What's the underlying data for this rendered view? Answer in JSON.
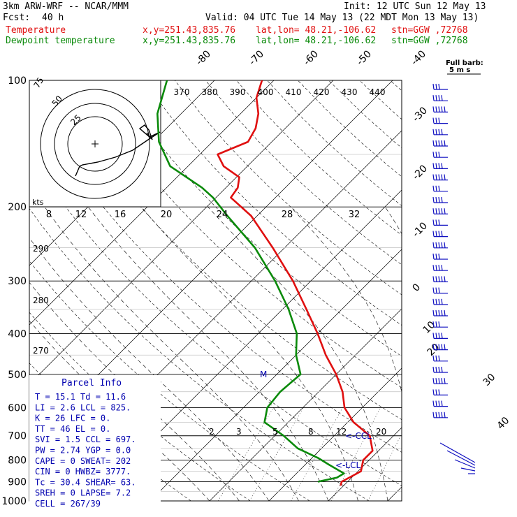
{
  "header": {
    "model": "3km ARW-WRF -- NCAR/MMM",
    "init": "Init: 12 UTC Sun 12 May 13",
    "fcst_label": "Fcst:",
    "fcst_value": "40 h",
    "valid": "Valid: 04 UTC Tue 14 May 13 (22 MDT Mon 13 May 13)",
    "temp_label": "Temperature",
    "dewp_label": "Dewpoint temperature",
    "xy": "x,y=251.43,835.76",
    "latlon": "lat,lon= 48.21,-106.62",
    "stn": "stn=GGW ,72768"
  },
  "colors": {
    "temperature": "#e01010",
    "dewpoint": "#0a8a0a",
    "parcel_text": "#0000b0",
    "wind": "#1010c0"
  },
  "chart_data": {
    "type": "line",
    "title": "",
    "y_axis": "pressure_hPa_log",
    "ylim": [
      1000,
      100
    ],
    "pressure_labels": [
      "100",
      "200",
      "300",
      "400",
      "500",
      "600",
      "700",
      "800",
      "900",
      "1000"
    ],
    "isotherm_labels": [
      "-80",
      "-70",
      "-60",
      "-50",
      "-40",
      "-30",
      "-20",
      "-10",
      "0",
      "10",
      "20",
      "30",
      "40"
    ],
    "theta_labels": [
      "370",
      "380",
      "390",
      "400",
      "410",
      "420",
      "430",
      "440"
    ],
    "theta_left_labels": [
      "290",
      "280",
      "270"
    ],
    "mixing_ratio_labels": [
      "2",
      "3",
      "5",
      "8",
      "12",
      "20"
    ],
    "hodograph_ring_labels": [
      "75",
      "50",
      "25"
    ],
    "hodograph_speed_labels": [
      "8",
      "12",
      "16",
      "20",
      "24",
      "28",
      "32"
    ],
    "hodograph_units": "kts",
    "barb_legend": [
      "Full barb:",
      "5 m s"
    ],
    "markers": {
      "ccl": "<-CCL",
      "lcl": "<-LCL",
      "m": "M"
    },
    "series": [
      {
        "name": "Temperature",
        "points": [
          [
            920,
            9.5
          ],
          [
            900,
            9.0
          ],
          [
            850,
            10.5
          ],
          [
            800,
            9.0
          ],
          [
            760,
            9.0
          ],
          [
            700,
            6.0
          ],
          [
            650,
            1.0
          ],
          [
            600,
            -3.0
          ],
          [
            550,
            -6.0
          ],
          [
            500,
            -10.0
          ],
          [
            450,
            -15.0
          ],
          [
            400,
            -20.0
          ],
          [
            350,
            -26.0
          ],
          [
            300,
            -33.0
          ],
          [
            250,
            -42.0
          ],
          [
            210,
            -51.0
          ],
          [
            190,
            -57.5
          ],
          [
            180,
            -58.0
          ],
          [
            170,
            -59.5
          ],
          [
            160,
            -64.0
          ],
          [
            150,
            -67.0
          ],
          [
            140,
            -64.0
          ],
          [
            130,
            -65.0
          ],
          [
            120,
            -67.0
          ],
          [
            110,
            -70.0
          ],
          [
            100,
            -72.0
          ]
        ]
      },
      {
        "name": "Dewpoint temperature",
        "points": [
          [
            900,
            5.0
          ],
          [
            880,
            7.5
          ],
          [
            860,
            8.0
          ],
          [
            820,
            4.0
          ],
          [
            790,
            1.0
          ],
          [
            750,
            -4.0
          ],
          [
            700,
            -8.5
          ],
          [
            650,
            -14.0
          ],
          [
            600,
            -16.0
          ],
          [
            550,
            -16.5
          ],
          [
            500,
            -16.0
          ],
          [
            450,
            -20.0
          ],
          [
            400,
            -23.5
          ],
          [
            350,
            -29.0
          ],
          [
            300,
            -36.0
          ],
          [
            250,
            -45.0
          ],
          [
            210,
            -55.0
          ],
          [
            190,
            -60.5
          ],
          [
            180,
            -64.0
          ],
          [
            160,
            -73.0
          ],
          [
            140,
            -79.0
          ],
          [
            120,
            -84.0
          ],
          [
            100,
            -88.0
          ]
        ]
      }
    ]
  },
  "parcel_info": {
    "title": "Parcel Info",
    "rows": [
      "T  =   15.1  Td =  11.6",
      "LI =    2.6  LCL =  825.",
      "K  =     26  LFC =    0.",
      "TT =     46  EL  =    0.",
      "SVI =   1.5  CCL =  697.",
      "PW =   2.74  YGP =   0.0",
      "CAPE =    0  SWEAT=  202",
      "CIN =     0  HWBZ= 3777.",
      "Tc =   30.4  SHEAR=  63.",
      "SREH =    0  LAPSE=  7.2",
      "CELL = 267/39"
    ]
  }
}
